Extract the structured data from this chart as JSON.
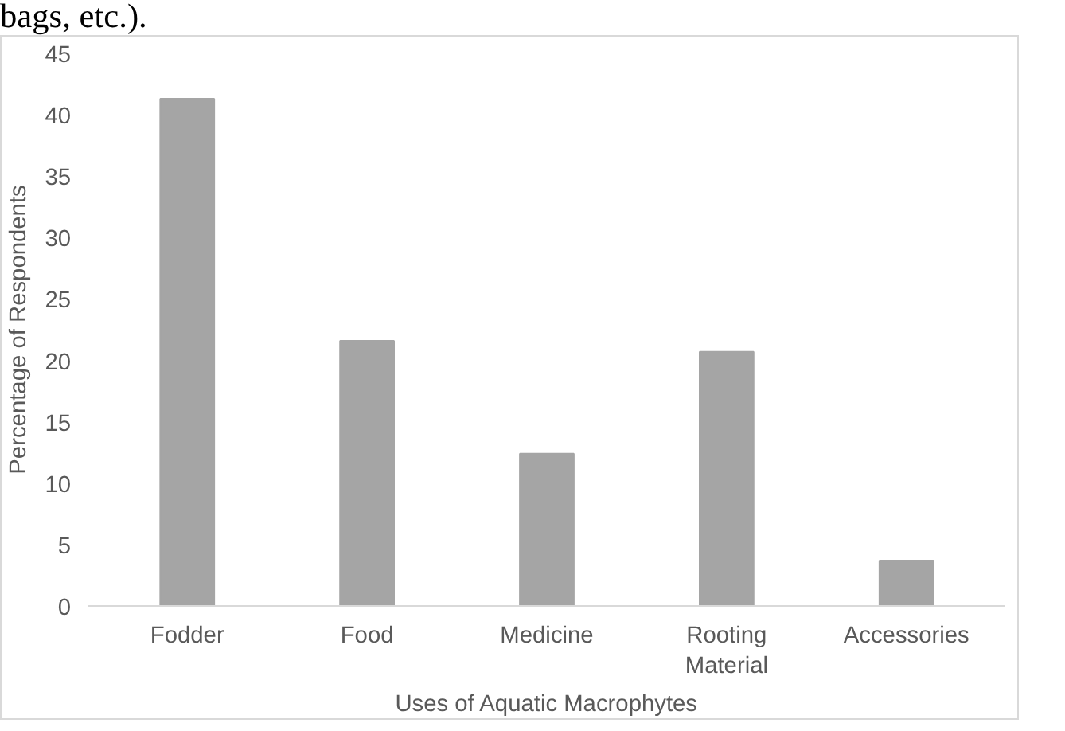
{
  "chart_data": {
    "type": "bar",
    "xlabel": "Uses of Aquatic Macrophytes",
    "ylabel": "Percentage of Respondents",
    "categories": [
      "Fodder",
      "Food",
      "Medicine",
      "Rooting Material",
      "Accessories"
    ],
    "values": [
      41.3,
      21.6,
      12.4,
      20.7,
      3.7
    ],
    "color": "#a5a5a5",
    "ylim": [
      0,
      45
    ],
    "yticks": [
      0,
      5,
      10,
      15,
      20,
      25,
      30,
      35,
      40,
      45
    ],
    "grid": false,
    "annotations": [
      "bags, etc.)."
    ]
  }
}
